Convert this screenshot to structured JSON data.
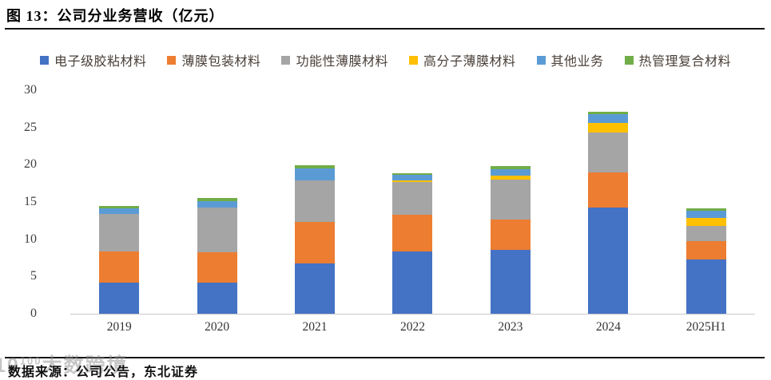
{
  "figure": {
    "title": "图 13：公司分业务营收（亿元）",
    "source_note": "数据来源：公司公告，东北证券"
  },
  "watermark": {
    "prefix": "10",
    "sup": "100",
    "name": "大数跨境"
  },
  "colors": {
    "axis_line": "#C9C9C9",
    "tick_label_text": "#404040",
    "legend_text": "#4A4039",
    "title_text": "#000000",
    "rule": "#161616"
  },
  "chart_data": {
    "type": "bar",
    "stacked": true,
    "title": "公司分业务营收（亿元）",
    "xlabel": "",
    "ylabel": "",
    "categories": [
      "2019",
      "2020",
      "2021",
      "2022",
      "2023",
      "2024",
      "2025H1"
    ],
    "series": [
      {
        "name": "电子级胶粘材料",
        "color": "#4472C4",
        "values": [
          4.2,
          4.2,
          6.7,
          8.4,
          8.6,
          14.3,
          7.3
        ]
      },
      {
        "name": "薄膜包装材料",
        "color": "#ED7D31",
        "values": [
          4.2,
          4.0,
          5.6,
          4.9,
          4.0,
          4.7,
          2.4
        ]
      },
      {
        "name": "功能性薄膜材料",
        "color": "#A5A5A5",
        "values": [
          5.0,
          6.0,
          5.6,
          4.4,
          5.4,
          5.3,
          2.1
        ]
      },
      {
        "name": "高分子薄膜材料",
        "color": "#FFC000",
        "values": [
          0,
          0,
          0,
          0.2,
          0.5,
          1.3,
          1.1
        ]
      },
      {
        "name": "其他业务",
        "color": "#5B9BD5",
        "values": [
          0.75,
          0.95,
          1.6,
          0.8,
          0.9,
          1.2,
          0.9
        ]
      },
      {
        "name": "热管理复合材料",
        "color": "#70AD47",
        "values": [
          0.3,
          0.35,
          0.4,
          0.2,
          0.4,
          0.3,
          0.3
        ]
      }
    ],
    "totals": [
      14.45,
      15.5,
      19.9,
      18.9,
      19.8,
      27.1,
      14.1
    ],
    "ylim": [
      0,
      30
    ],
    "yticks": [
      0,
      5,
      10,
      15,
      20,
      25,
      30
    ],
    "grid": false,
    "legend_position": "top"
  }
}
